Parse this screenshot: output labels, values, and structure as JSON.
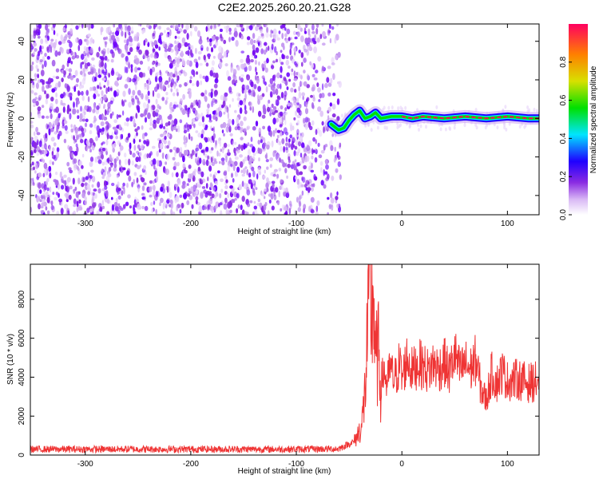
{
  "figure": {
    "title": "C2E2.2025.260.20.21.G28"
  },
  "chart_data": [
    {
      "type": "heatmap",
      "xlabel": "Height of straight line (km)",
      "ylabel": "Frequency (Hz)",
      "xlim": [
        -352,
        130
      ],
      "ylim": [
        -50,
        49
      ],
      "x_ticks": [
        -300,
        -200,
        -100,
        0,
        100
      ],
      "y_ticks": [
        -40,
        -20,
        0,
        20,
        40
      ],
      "noise_region_x": [
        -352,
        -58
      ],
      "signal_track": {
        "x": [
          -67,
          -60,
          -55,
          -50,
          -45,
          -40,
          -35,
          -30,
          -25,
          -20,
          -10,
          0,
          10,
          20,
          40,
          60,
          80,
          100,
          120,
          130
        ],
        "y": [
          -3,
          -6,
          -5,
          -1,
          2,
          4,
          0,
          1,
          3,
          0,
          1,
          1,
          0,
          1,
          0,
          1,
          0,
          1,
          0,
          0
        ]
      },
      "colorbar": {
        "label": "Normalized spectral amplitude",
        "range": [
          0,
          1
        ],
        "ticks": [
          "0.0",
          "0.2",
          "0.4",
          "0.6",
          "0.8"
        ],
        "colors": [
          "#ffffff",
          "#d9b8f5",
          "#8a2be2",
          "#1f00ff",
          "#00e5ff",
          "#00e000",
          "#d8e000",
          "#ff8000",
          "#ff0060"
        ]
      }
    },
    {
      "type": "line",
      "xlabel": "Height of straight line (km)",
      "ylabel": "SNR (10 * v/v)",
      "xlim": [
        -352,
        130
      ],
      "ylim": [
        0,
        9800
      ],
      "x_ticks": [
        -300,
        -200,
        -100,
        0,
        100
      ],
      "y_ticks": [
        0,
        2000,
        4000,
        6000,
        8000
      ],
      "series": [
        {
          "color": "#ef3434",
          "x": [
            -352,
            -300,
            -250,
            -200,
            -150,
            -100,
            -60,
            -45,
            -38,
            -35,
            -33,
            -31,
            -29,
            -27,
            -25,
            -22,
            -20,
            -17,
            -14,
            -11,
            -8,
            -5,
            -2,
            0,
            5,
            10,
            15,
            20,
            25,
            30,
            35,
            40,
            45,
            50,
            55,
            60,
            65,
            70,
            75,
            80,
            85,
            90,
            95,
            100,
            110,
            120,
            130
          ],
          "y": [
            300,
            300,
            300,
            300,
            300,
            300,
            320,
            700,
            1500,
            3200,
            5600,
            9300,
            7200,
            8600,
            4700,
            5200,
            3500,
            4400,
            3600,
            4500,
            3900,
            4100,
            4800,
            3900,
            5000,
            4300,
            4700,
            4600,
            4300,
            4700,
            4400,
            4800,
            4200,
            5200,
            4300,
            4700,
            4400,
            4900,
            3400,
            2800,
            4200,
            3700,
            4300,
            3800,
            3900,
            3700,
            3800
          ]
        }
      ]
    }
  ]
}
